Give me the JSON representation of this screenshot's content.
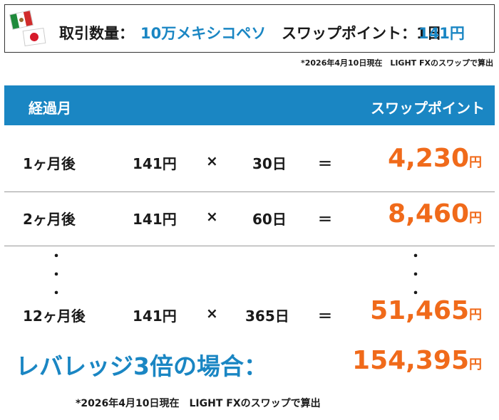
{
  "header": {
    "quantity_label": "取引数量：",
    "quantity_value": "10万メキシコペソ",
    "swap_label": "スワップポイント：1日",
    "swap_value": "141円"
  },
  "note_top": "*2026年4月10日現在　LIGHT FXのスワップで算出",
  "table": {
    "col_month": "経過月",
    "col_swap": "スワップポイント",
    "rows": [
      {
        "month": "1ヶ月後",
        "rate": "141円",
        "op": "×",
        "days": "30日",
        "eq": "＝",
        "total": "4,230",
        "unit": "円"
      },
      {
        "month": "2ヶ月後",
        "rate": "141円",
        "op": "×",
        "days": "60日",
        "eq": "＝",
        "total": "8,460",
        "unit": "円"
      },
      {
        "month": "12ヶ月後",
        "rate": "141円",
        "op": "×",
        "days": "365日",
        "eq": "＝",
        "total": "51,465",
        "unit": "円"
      }
    ],
    "ellipsis": "・\n・\n・"
  },
  "leverage": {
    "label": "レバレッジ3倍の場合：",
    "total": "154,395",
    "unit": "円"
  },
  "note_bottom": "*2026年4月10日現在　LIGHT FXのスワップで算出",
  "colors": {
    "accent_blue": "#1a86c3",
    "accent_orange": "#f06a1a"
  },
  "icons": [
    "mexico-flag-icon",
    "japan-flag-icon"
  ]
}
